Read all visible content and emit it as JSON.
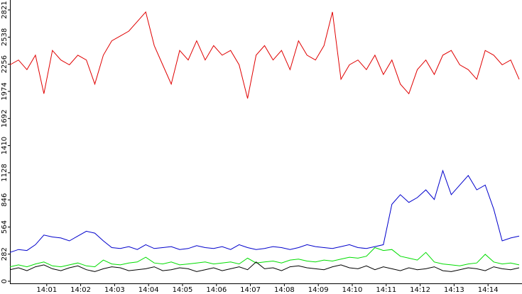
{
  "chart_data": {
    "type": "line",
    "x": [
      "13:59:55",
      "14:00:10",
      "14:00:25",
      "14:00:40",
      "14:00:55",
      "14:01:10",
      "14:01:25",
      "14:01:40",
      "14:01:55",
      "14:02:10",
      "14:02:25",
      "14:02:40",
      "14:02:55",
      "14:03:10",
      "14:03:25",
      "14:03:40",
      "14:03:55",
      "14:04:10",
      "14:04:25",
      "14:04:40",
      "14:04:55",
      "14:05:10",
      "14:05:25",
      "14:05:40",
      "14:05:55",
      "14:06:10",
      "14:06:25",
      "14:06:40",
      "14:06:55",
      "14:07:10",
      "14:07:25",
      "14:07:40",
      "14:07:55",
      "14:08:10",
      "14:08:25",
      "14:08:40",
      "14:08:55",
      "14:09:10",
      "14:09:25",
      "14:09:40",
      "14:09:55",
      "14:10:10",
      "14:10:25",
      "14:10:40",
      "14:10:55",
      "14:11:10",
      "14:11:25",
      "14:11:40",
      "14:11:55",
      "14:12:10",
      "14:12:25",
      "14:12:40",
      "14:12:55",
      "14:13:10",
      "14:13:25",
      "14:13:40",
      "14:13:55",
      "14:14:10",
      "14:14:25",
      "14:14:40",
      "14:14:55"
    ],
    "series": [
      {
        "color": "#e00000",
        "values": [
          2250,
          2300,
          2200,
          2350,
          1950,
          2400,
          2300,
          2250,
          2350,
          2300,
          2050,
          2350,
          2500,
          2550,
          2600,
          2700,
          2800,
          2450,
          2250,
          2050,
          2400,
          2300,
          2500,
          2300,
          2450,
          2350,
          2400,
          2250,
          1900,
          2350,
          2450,
          2300,
          2400,
          2200,
          2500,
          2350,
          2300,
          2450,
          2800,
          2100,
          2250,
          2300,
          2200,
          2350,
          2150,
          2300,
          2050,
          1950,
          2200,
          2300,
          2150,
          2350,
          2400,
          2250,
          2200,
          2100,
          2400,
          2350,
          2250,
          2300,
          2100
        ]
      },
      {
        "color": "#0000cc",
        "values": [
          300,
          330,
          320,
          380,
          480,
          460,
          450,
          420,
          470,
          520,
          500,
          420,
          350,
          340,
          360,
          330,
          380,
          340,
          350,
          360,
          330,
          340,
          370,
          350,
          340,
          360,
          330,
          380,
          350,
          330,
          340,
          360,
          350,
          330,
          350,
          380,
          360,
          350,
          340,
          360,
          380,
          350,
          340,
          360,
          380,
          800,
          900,
          820,
          870,
          950,
          850,
          1150,
          900,
          1000,
          1100,
          950,
          1000,
          750,
          420,
          450,
          470
        ]
      },
      {
        "color": "#00dd00",
        "values": [
          150,
          170,
          150,
          180,
          200,
          160,
          150,
          170,
          190,
          160,
          150,
          220,
          180,
          170,
          190,
          200,
          250,
          190,
          180,
          200,
          170,
          180,
          190,
          200,
          180,
          190,
          200,
          180,
          240,
          190,
          200,
          210,
          190,
          220,
          230,
          210,
          200,
          220,
          210,
          230,
          250,
          240,
          260,
          350,
          320,
          330,
          260,
          240,
          220,
          300,
          200,
          180,
          170,
          160,
          180,
          190,
          280,
          200,
          180,
          190,
          170
        ]
      },
      {
        "color": "#000000",
        "values": [
          120,
          140,
          110,
          150,
          170,
          130,
          110,
          140,
          160,
          120,
          100,
          130,
          150,
          140,
          110,
          120,
          130,
          150,
          110,
          120,
          140,
          130,
          100,
          120,
          140,
          110,
          130,
          150,
          120,
          200,
          130,
          140,
          110,
          150,
          160,
          140,
          130,
          120,
          150,
          170,
          140,
          130,
          160,
          120,
          150,
          130,
          110,
          140,
          120,
          130,
          150,
          110,
          100,
          120,
          140,
          130,
          110,
          150,
          130,
          120,
          140
        ]
      }
    ],
    "xlim": [
      "13:59:55",
      "14:15:00"
    ],
    "xticks": [
      "14:01",
      "14:02",
      "14:03",
      "14:04",
      "14:05",
      "14:06",
      "14:07",
      "14:08",
      "14:09",
      "14:10",
      "14:11",
      "14:12",
      "14:13",
      "14:14"
    ],
    "ylim": [
      0,
      2821
    ],
    "yticks": [
      0,
      282,
      564,
      846,
      1128,
      1410,
      1692,
      1974,
      2256,
      2538,
      2821
    ]
  }
}
